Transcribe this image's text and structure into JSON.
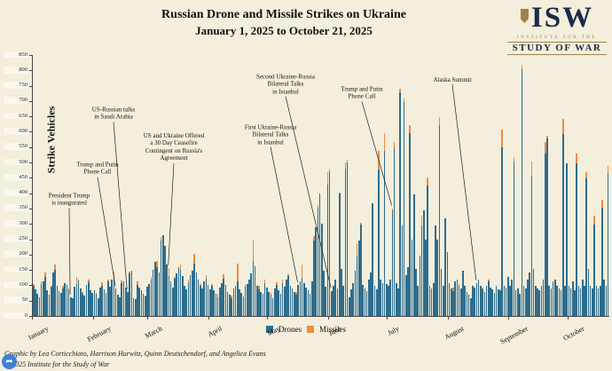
{
  "header": {
    "title_line1": "Russian Drone and Missile Strikes on Ukraine",
    "title_line2": "January 1, 2025 to October 21, 2025"
  },
  "logo": {
    "acronym": "ISW",
    "line1": "INSTITUTE FOR THE",
    "line2": "STUDY OF WAR",
    "navy": "#1c2b4a",
    "gold": "#a3804a"
  },
  "legend": [
    {
      "label": "Drones",
      "color": "#2d6d8e"
    },
    {
      "label": "Missiles",
      "color": "#ef8b3f"
    }
  ],
  "footer": {
    "credit": "Graphic by Lea Corticchiato, Harrison Hurwitz, Quinn Deutschendorf, and Angelica Evans",
    "copyright": "© 2025 Institute for the Study of War"
  },
  "share_icon": {
    "glyph": "➦",
    "color": "#3d7fd6"
  },
  "chart_data": {
    "type": "bar",
    "stacked": true,
    "title": "Russian Drone and Missile Strikes on Ukraine",
    "subtitle": "January 1, 2025 to October 21, 2025",
    "ylabel": "Strike Vehicles",
    "xlabel": "",
    "ylim": [
      0,
      850
    ],
    "ytick_step": 50,
    "grid": false,
    "legend_position": "bottom",
    "colors": {
      "drones": "#2d6d8e",
      "missiles": "#ef8b3f"
    },
    "series_names": [
      "Drones",
      "Missiles"
    ],
    "months": [
      {
        "label": "January",
        "drones": [
          98,
          87,
          72,
          61,
          103,
          112,
          128,
          84,
          69,
          95,
          142,
          151,
          99,
          81,
          74,
          91,
          108,
          102,
          86,
          62,
          57,
          96,
          104,
          118,
          89,
          71,
          66,
          101,
          111,
          84,
          76
        ],
        "missiles": [
          6,
          0,
          0,
          0,
          9,
          0,
          14,
          0,
          0,
          4,
          0,
          18,
          0,
          0,
          0,
          8,
          0,
          0,
          5,
          0,
          0,
          0,
          22,
          0,
          0,
          6,
          0,
          0,
          9,
          0,
          0
        ]
      },
      {
        "label": "February",
        "drones": [
          83,
          71,
          59,
          92,
          99,
          86,
          74,
          112,
          96,
          119,
          131,
          89,
          68,
          61,
          106,
          114,
          94,
          79,
          138,
          147,
          58,
          54,
          101,
          92,
          84,
          73,
          64,
          96
        ],
        "missiles": [
          0,
          5,
          0,
          0,
          12,
          0,
          0,
          7,
          0,
          0,
          15,
          0,
          0,
          0,
          9,
          0,
          0,
          0,
          6,
          0,
          0,
          0,
          11,
          0,
          0,
          0,
          4,
          0
        ]
      },
      {
        "label": "March",
        "drones": [
          104,
          118,
          149,
          176,
          158,
          141,
          246,
          262,
          228,
          168,
          131,
          112,
          94,
          121,
          139,
          158,
          151,
          129,
          99,
          88,
          109,
          132,
          148,
          171,
          142,
          119,
          98,
          91,
          112,
          121,
          102
        ],
        "missiles": [
          0,
          8,
          0,
          0,
          20,
          0,
          12,
          0,
          0,
          0,
          25,
          0,
          0,
          6,
          0,
          0,
          18,
          0,
          0,
          0,
          9,
          0,
          0,
          30,
          0,
          0,
          7,
          0,
          0,
          12,
          0
        ]
      },
      {
        "label": "April",
        "drones": [
          88,
          99,
          84,
          71,
          62,
          94,
          108,
          122,
          101,
          79,
          69,
          58,
          91,
          99,
          112,
          86,
          74,
          63,
          96,
          103,
          118,
          139,
          178,
          162,
          99,
          88,
          79,
          71,
          108,
          94
        ],
        "missiles": [
          0,
          6,
          0,
          0,
          10,
          0,
          0,
          14,
          0,
          0,
          0,
          8,
          0,
          0,
          60,
          0,
          0,
          0,
          7,
          0,
          0,
          0,
          70,
          0,
          0,
          9,
          0,
          0,
          12,
          0
        ]
      },
      {
        "label": "May",
        "drones": [
          78,
          69,
          58,
          89,
          101,
          84,
          73,
          108,
          96,
          118,
          129,
          99,
          89,
          78,
          69,
          101,
          113,
          124,
          108,
          94,
          83,
          72,
          112,
          246,
          288,
          352,
          398,
          302,
          148,
          96,
          428
        ],
        "missiles": [
          0,
          5,
          0,
          0,
          9,
          0,
          0,
          11,
          0,
          0,
          6,
          0,
          0,
          0,
          8,
          0,
          0,
          45,
          0,
          0,
          0,
          0,
          0,
          14,
          0,
          9,
          0,
          0,
          0,
          0,
          40
        ]
      },
      {
        "label": "June",
        "drones": [
          472,
          82,
          99,
          118,
          91,
          398,
          152,
          98,
          479,
          499,
          62,
          88,
          108,
          148,
          198,
          246,
          298,
          102,
          91,
          82,
          118,
          142,
          368,
          98,
          88,
          477,
          118,
          108,
          537,
          104
        ],
        "missiles": [
          7,
          0,
          0,
          0,
          0,
          4,
          0,
          0,
          20,
          11,
          0,
          0,
          0,
          0,
          40,
          0,
          7,
          0,
          0,
          0,
          0,
          0,
          0,
          0,
          0,
          60,
          0,
          0,
          60,
          0
        ]
      },
      {
        "label": "July",
        "drones": [
          98,
          118,
          343,
          550,
          108,
          91,
          728,
          296,
          697,
          132,
          158,
          597,
          248,
          396,
          152,
          98,
          198,
          296,
          344,
          248,
          426,
          98,
          91,
          108,
          296,
          248,
          623,
          152,
          98,
          317,
          208
        ],
        "missiles": [
          0,
          0,
          8,
          16,
          0,
          0,
          13,
          0,
          10,
          0,
          0,
          26,
          0,
          0,
          0,
          0,
          0,
          30,
          0,
          0,
          24,
          0,
          0,
          0,
          0,
          0,
          26,
          0,
          0,
          0,
          0
        ]
      },
      {
        "label": "August",
        "drones": [
          108,
          91,
          82,
          112,
          118,
          98,
          89,
          148,
          98,
          79,
          68,
          58,
          98,
          92,
          108,
          118,
          98,
          88,
          78,
          98,
          112,
          94,
          86,
          74,
          98,
          88,
          84,
          548,
          98,
          92,
          126
        ],
        "missiles": [
          0,
          0,
          12,
          0,
          0,
          6,
          0,
          0,
          0,
          0,
          0,
          0,
          0,
          0,
          0,
          0,
          0,
          4,
          0,
          0,
          8,
          0,
          0,
          0,
          0,
          0,
          0,
          60,
          0,
          0,
          0
        ]
      },
      {
        "label": "September",
        "drones": [
          98,
          118,
          502,
          84,
          91,
          72,
          805,
          98,
          91,
          118,
          142,
          458,
          152,
          98,
          91,
          84,
          98,
          118,
          528,
          579,
          98,
          91,
          112,
          118,
          98,
          91,
          84,
          593,
          98,
          496
        ],
        "missiles": [
          0,
          0,
          16,
          0,
          0,
          0,
          13,
          0,
          0,
          0,
          0,
          45,
          0,
          0,
          0,
          0,
          0,
          0,
          40,
          8,
          0,
          0,
          0,
          0,
          0,
          0,
          0,
          48,
          0,
          0
        ]
      },
      {
        "label": "October",
        "drones": [
          98,
          91,
          112,
          84,
          496,
          98,
          91,
          118,
          98,
          449,
          152,
          98,
          91,
          298,
          98,
          91,
          98,
          352,
          118,
          98,
          466
        ],
        "missiles": [
          0,
          0,
          0,
          0,
          32,
          0,
          0,
          0,
          0,
          20,
          0,
          0,
          0,
          30,
          0,
          0,
          0,
          28,
          0,
          0,
          24
        ]
      }
    ],
    "annotations": [
      {
        "text": "President Trump\nis inaugurated",
        "day": 19,
        "lx": 78,
        "ly": 225
      },
      {
        "text": "Trump and Putin\nPhone Call",
        "day": 42,
        "lx": 110,
        "ly": 190
      },
      {
        "text": "US-Russian talks\nin Saudi Arabia",
        "day": 48,
        "lx": 128,
        "ly": 128
      },
      {
        "text": "US and Ukraine Offered\na 30 Day Ceasefire\nContingent on Russia's\nAgreement",
        "day": 69,
        "lx": 196,
        "ly": 166
      },
      {
        "text": "First Ukraine-Russia\nBilateral Talks\nin Istanbul",
        "day": 135,
        "lx": 305,
        "ly": 152
      },
      {
        "text": "Second Ukraine-Russia\nBilateral Talks\nin Istanbul",
        "day": 152,
        "lx": 322,
        "ly": 95
      },
      {
        "text": "Trump and Putin\nPhone Call",
        "day": 183,
        "lx": 408,
        "ly": 105
      },
      {
        "text": "Alaska Summit",
        "day": 226,
        "lx": 510,
        "ly": 90
      }
    ]
  }
}
